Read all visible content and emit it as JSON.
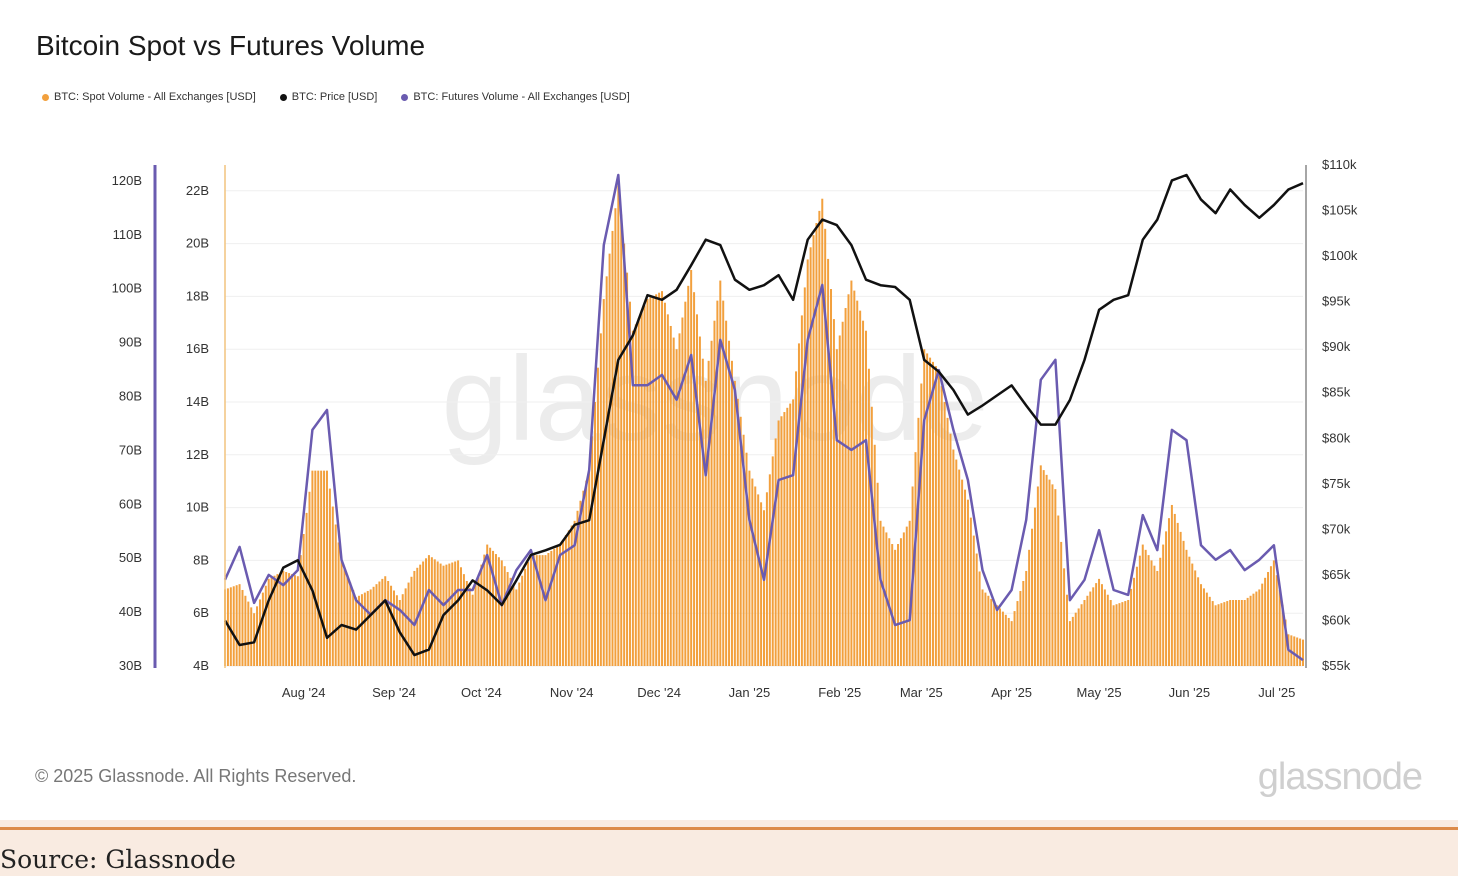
{
  "title": "Bitcoin Spot vs Futures Volume",
  "legend": [
    {
      "label": "BTC: Spot Volume - All Exchanges [USD]",
      "color": "#f2a03d"
    },
    {
      "label": "BTC: Price [USD]",
      "color": "#111111"
    },
    {
      "label": "BTC: Futures Volume - All Exchanges [USD]",
      "color": "#6a5bb0"
    }
  ],
  "watermark": "glassnode",
  "copyright": "© 2025 Glassnode. All Rights Reserved.",
  "logo": "glassnode",
  "source": "Source: Glassnode",
  "chart_data": {
    "type": "bar+line",
    "title": "Bitcoin Spot vs Futures Volume",
    "x_unit": "days since 2024-07-05",
    "x_step_days": 5,
    "x_range": [
      0,
      370
    ],
    "x_ticks": [
      {
        "label": "Aug '24",
        "day": 27
      },
      {
        "label": "Sep '24",
        "day": 58
      },
      {
        "label": "Oct '24",
        "day": 88
      },
      {
        "label": "Nov '24",
        "day": 119
      },
      {
        "label": "Dec '24",
        "day": 149
      },
      {
        "label": "Jan '25",
        "day": 180
      },
      {
        "label": "Feb '25",
        "day": 211
      },
      {
        "label": "Mar '25",
        "day": 239
      },
      {
        "label": "Apr '25",
        "day": 270
      },
      {
        "label": "May '25",
        "day": 300
      },
      {
        "label": "Jun '25",
        "day": 331
      },
      {
        "label": "Jul '25",
        "day": 361
      }
    ],
    "axes": {
      "futures_left": {
        "range": [
          30,
          123
        ],
        "ticks": [
          "30B",
          "40B",
          "50B",
          "60B",
          "70B",
          "80B",
          "90B",
          "100B",
          "110B",
          "120B"
        ],
        "values": [
          30,
          40,
          50,
          60,
          70,
          80,
          90,
          100,
          110,
          120
        ]
      },
      "spot_left": {
        "range": [
          4,
          23
        ],
        "ticks": [
          "4B",
          "6B",
          "8B",
          "10B",
          "12B",
          "14B",
          "16B",
          "18B",
          "20B",
          "22B"
        ],
        "values": [
          4,
          6,
          8,
          10,
          12,
          14,
          16,
          18,
          20,
          22
        ]
      },
      "price_right": {
        "range": [
          55,
          110
        ],
        "ticks": [
          "$55k",
          "$60k",
          "$65k",
          "$70k",
          "$75k",
          "$80k",
          "$85k",
          "$90k",
          "$95k",
          "$100k",
          "$105k",
          "$110k"
        ],
        "values": [
          55,
          60,
          65,
          70,
          75,
          80,
          85,
          90,
          95,
          100,
          105,
          110
        ]
      }
    },
    "grid": true,
    "legend_position": "top-left",
    "series": [
      {
        "name": "BTC: Spot Volume - All Exchanges [USD]",
        "type": "bar",
        "axis": "spot_left",
        "unit": "B USD",
        "values": [
          6.9,
          7.1,
          6.0,
          7.3,
          7.6,
          7.4,
          11.4,
          11.4,
          8.0,
          6.6,
          6.9,
          7.4,
          6.5,
          7.6,
          8.2,
          7.8,
          8.0,
          6.7,
          8.6,
          8.0,
          6.9,
          8.2,
          8.2,
          8.6,
          9.5,
          11.4,
          17.9,
          22.2,
          16.7,
          17.9,
          18.2,
          16.0,
          19.0,
          14.8,
          18.6,
          14.8,
          11.4,
          9.9,
          13.3,
          14.1,
          19.4,
          21.7,
          16.0,
          18.6,
          16.7,
          9.5,
          8.4,
          9.5,
          16.0,
          15.2,
          12.2,
          10.3,
          6.9,
          6.3,
          5.7,
          7.6,
          11.6,
          10.7,
          5.7,
          6.5,
          7.3,
          6.3,
          6.5,
          8.6,
          7.6,
          10.1,
          8.4,
          7.1,
          6.3,
          6.5,
          6.5,
          6.9,
          8.0,
          5.2,
          5.0
        ]
      },
      {
        "name": "BTC: Price [USD]",
        "type": "line",
        "axis": "price_right",
        "unit": "k USD",
        "values": [
          60.0,
          57.3,
          57.6,
          62.2,
          65.8,
          66.6,
          63.3,
          58.1,
          59.5,
          59.0,
          60.6,
          62.2,
          58.7,
          56.2,
          56.8,
          60.6,
          62.2,
          64.4,
          63.3,
          61.7,
          64.4,
          67.2,
          67.7,
          68.3,
          70.5,
          71.0,
          79.8,
          88.6,
          91.3,
          95.7,
          95.2,
          96.3,
          99.0,
          101.8,
          101.2,
          97.4,
          96.3,
          96.8,
          97.9,
          95.2,
          101.8,
          104.0,
          103.4,
          101.2,
          97.4,
          96.8,
          96.6,
          95.2,
          88.6,
          87.3,
          85.3,
          82.6,
          83.6,
          84.7,
          85.8,
          83.6,
          81.5,
          81.5,
          84.2,
          88.6,
          94.1,
          95.2,
          95.7,
          101.8,
          104.0,
          108.3,
          108.9,
          106.2,
          104.7,
          107.3,
          105.6,
          104.2,
          105.6,
          107.3,
          108.0
        ]
      },
      {
        "name": "BTC: Futures Volume - All Exchanges [USD]",
        "type": "line",
        "axis": "futures_left",
        "unit": "B USD",
        "values": [
          46,
          52.1,
          41.7,
          46.9,
          45,
          47.8,
          73.8,
          77.5,
          49.7,
          42.2,
          39.5,
          42.2,
          40.4,
          37.6,
          44.1,
          41.3,
          44.1,
          44.1,
          50.6,
          41.3,
          47.8,
          51.5,
          42.2,
          50.6,
          52.4,
          66.4,
          108.1,
          121.1,
          82.1,
          82.1,
          84,
          79.4,
          87.7,
          65.4,
          90.5,
          81.2,
          57.1,
          46,
          64.5,
          65.4,
          90.5,
          100.7,
          71.9,
          70.1,
          71.9,
          46,
          37.6,
          38.5,
          75.6,
          84.9,
          73.8,
          64.5,
          47.8,
          40.4,
          44.1,
          57.1,
          83.1,
          86.8,
          42.2,
          46,
          55.2,
          44.1,
          43.2,
          58,
          51.5,
          73.8,
          71.9,
          52.4,
          49.7,
          51.5,
          47.8,
          49.7,
          52.4,
          33,
          31.1
        ]
      }
    ]
  }
}
